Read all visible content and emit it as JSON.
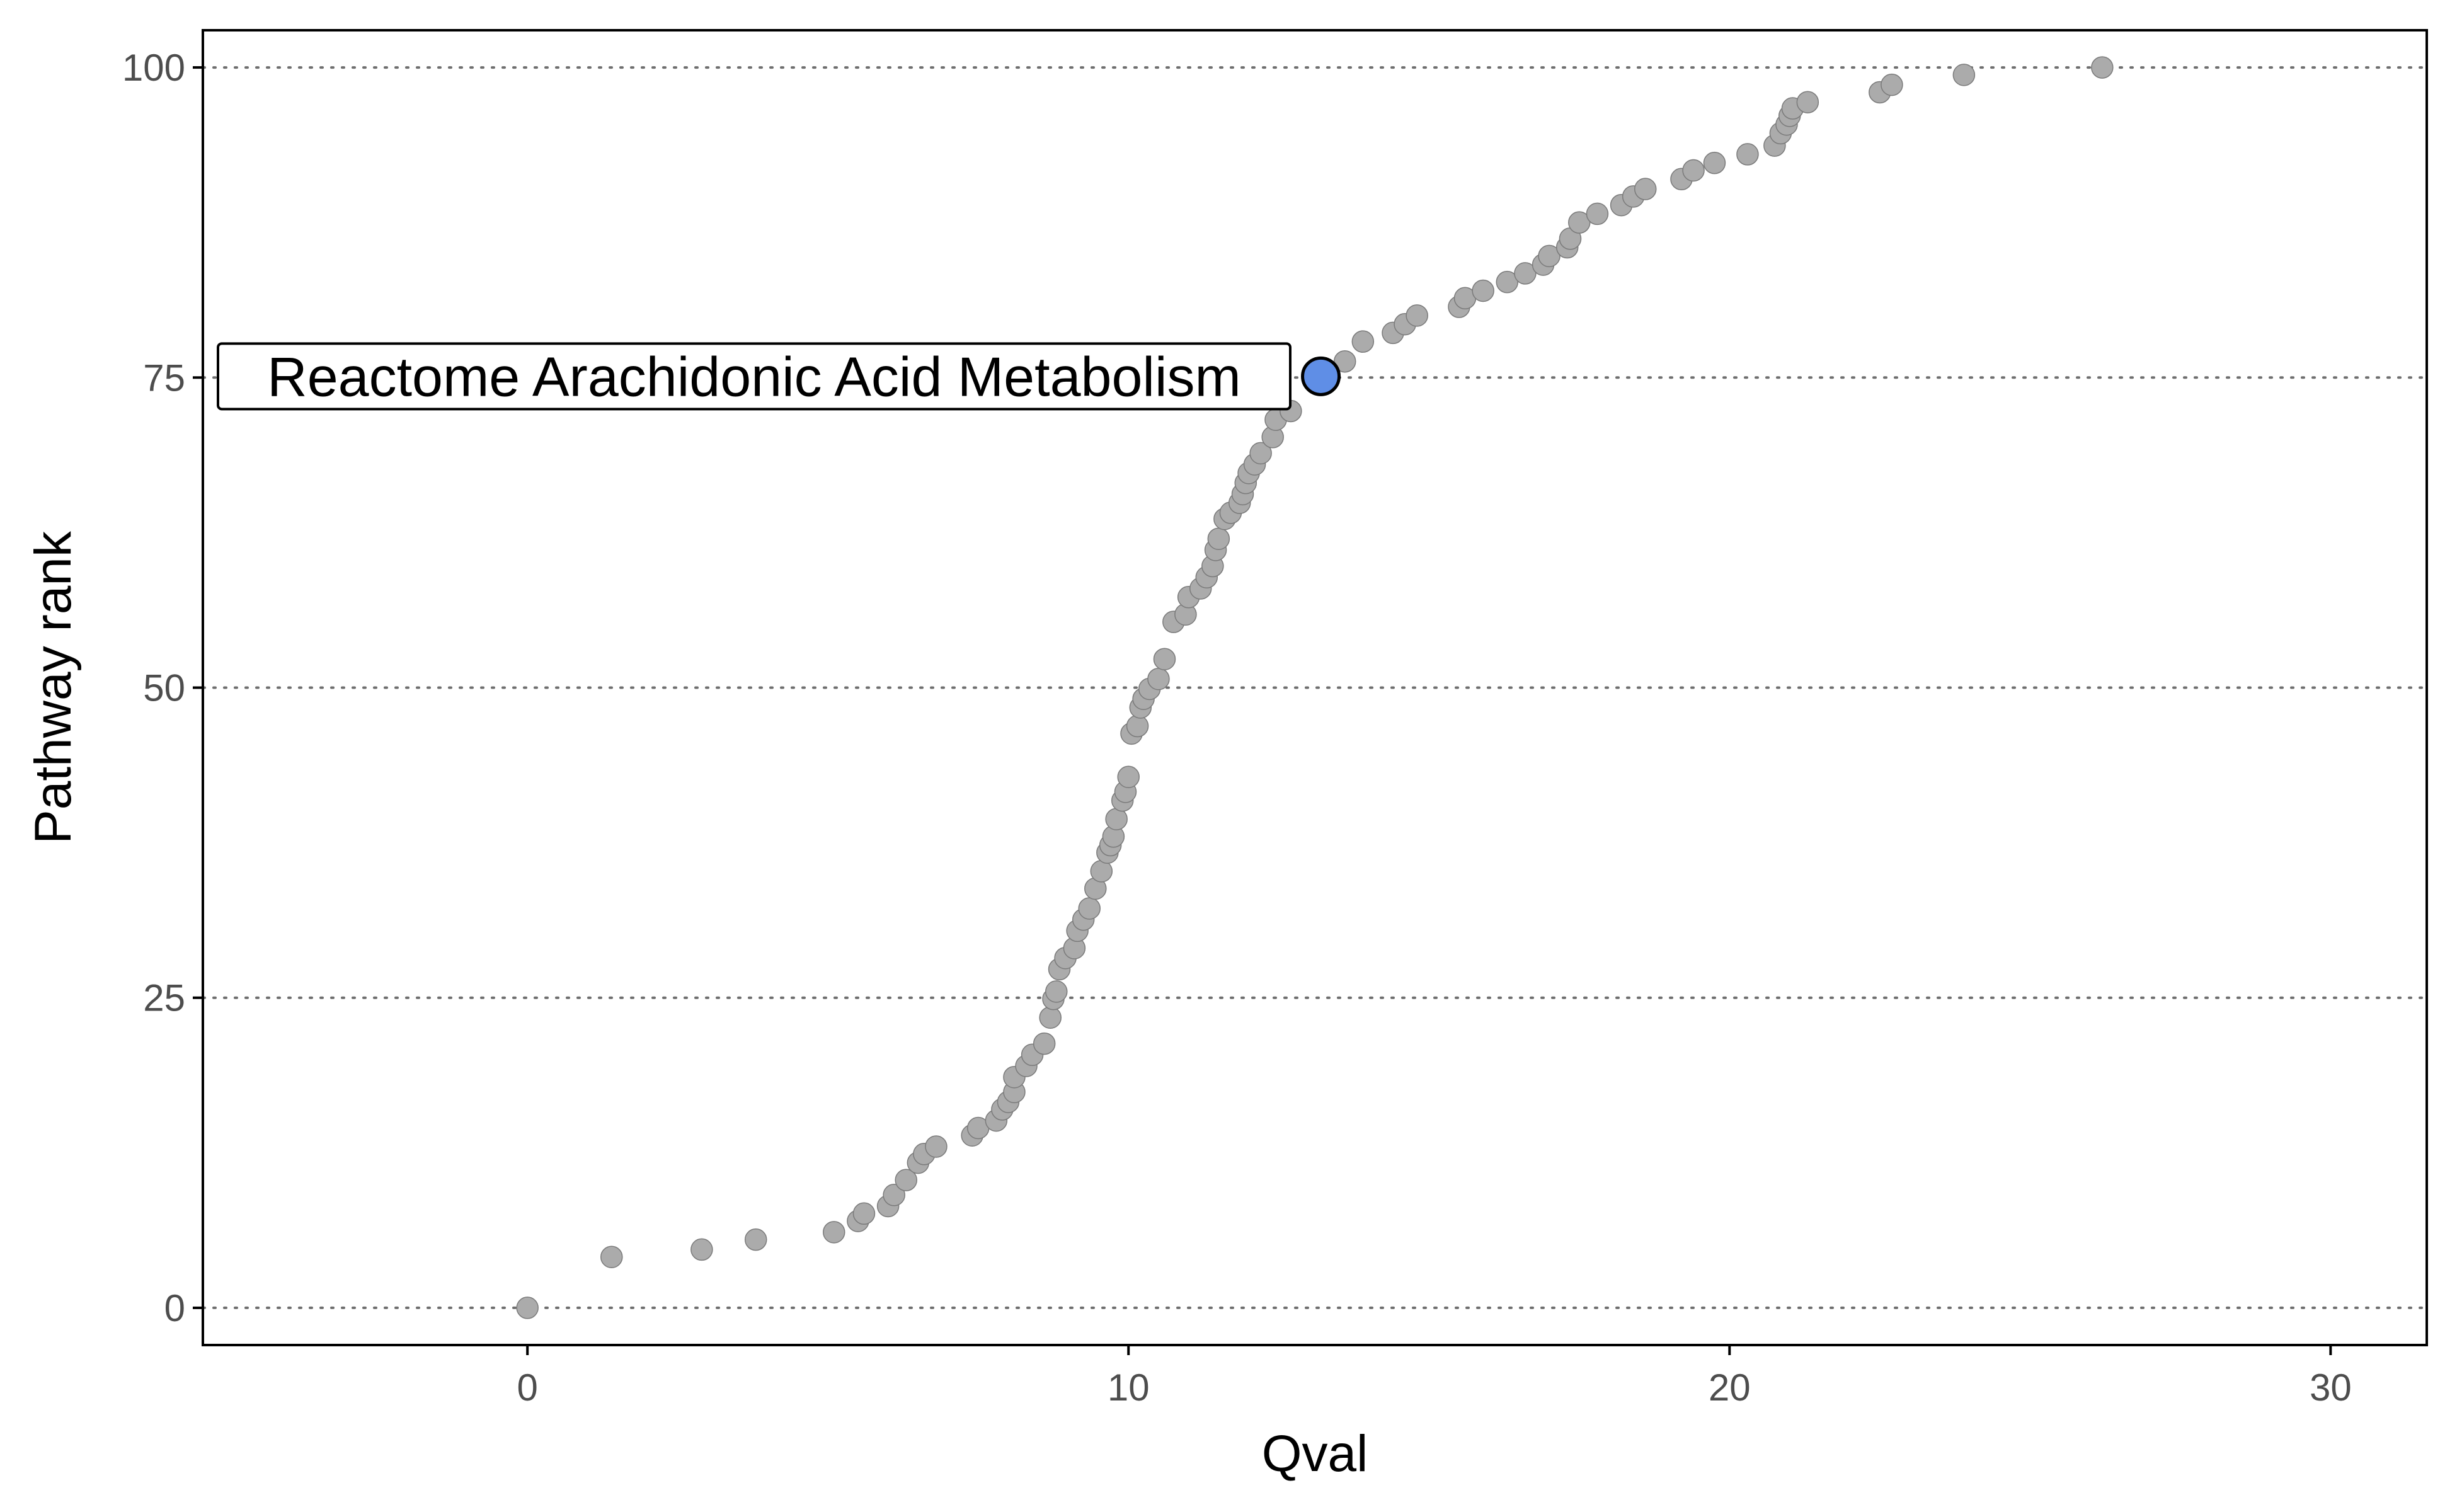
{
  "chart_data": {
    "type": "scatter",
    "xlabel": "Qval",
    "ylabel": "Pathway rank",
    "xlim": [
      -5.4,
      31.6
    ],
    "ylim": [
      -3,
      103
    ],
    "x_ticks": [
      0,
      10,
      20,
      30
    ],
    "y_ticks": [
      0,
      25,
      50,
      75,
      100
    ],
    "grid": "horizontal dotted at y ticks",
    "colors": {
      "point": "#ababab",
      "point_edge": "#7a7a7a",
      "highlight": "#5f8ee6",
      "highlight_edge": "#000000",
      "grid": "#6e6e6e",
      "axis": "#000000"
    },
    "highlight": {
      "label": "Reactome Arachidonic Acid Metabolism",
      "x": 13.2,
      "y": 75.1
    },
    "points": [
      [
        0.0,
        0.0
      ],
      [
        1.4,
        4.1
      ],
      [
        2.9,
        4.7
      ],
      [
        3.8,
        5.5
      ],
      [
        5.1,
        6.1
      ],
      [
        5.5,
        7.0
      ],
      [
        5.6,
        7.6
      ],
      [
        6.0,
        8.2
      ],
      [
        6.1,
        9.1
      ],
      [
        6.3,
        10.3
      ],
      [
        6.5,
        11.7
      ],
      [
        6.6,
        12.4
      ],
      [
        6.8,
        13.0
      ],
      [
        7.4,
        13.9
      ],
      [
        7.5,
        14.5
      ],
      [
        7.8,
        15.1
      ],
      [
        7.9,
        16.0
      ],
      [
        8.0,
        16.6
      ],
      [
        8.1,
        17.4
      ],
      [
        8.1,
        18.6
      ],
      [
        8.3,
        19.5
      ],
      [
        8.4,
        20.4
      ],
      [
        8.6,
        21.3
      ],
      [
        8.7,
        23.4
      ],
      [
        8.75,
        24.9
      ],
      [
        8.8,
        25.5
      ],
      [
        8.85,
        27.3
      ],
      [
        8.95,
        28.2
      ],
      [
        9.1,
        29.0
      ],
      [
        9.15,
        30.4
      ],
      [
        9.25,
        31.3
      ],
      [
        9.35,
        32.2
      ],
      [
        9.45,
        33.8
      ],
      [
        9.55,
        35.2
      ],
      [
        9.65,
        36.7
      ],
      [
        9.7,
        37.3
      ],
      [
        9.75,
        38.0
      ],
      [
        9.8,
        39.4
      ],
      [
        9.9,
        40.9
      ],
      [
        9.95,
        41.6
      ],
      [
        10.0,
        42.8
      ],
      [
        10.05,
        46.3
      ],
      [
        10.15,
        46.9
      ],
      [
        10.2,
        48.4
      ],
      [
        10.25,
        49.1
      ],
      [
        10.35,
        49.9
      ],
      [
        10.5,
        50.7
      ],
      [
        10.6,
        52.3
      ],
      [
        10.75,
        55.3
      ],
      [
        10.95,
        55.9
      ],
      [
        11.0,
        57.3
      ],
      [
        11.2,
        58.0
      ],
      [
        11.3,
        58.9
      ],
      [
        11.4,
        59.8
      ],
      [
        11.45,
        61.1
      ],
      [
        11.5,
        62.0
      ],
      [
        11.6,
        63.6
      ],
      [
        11.7,
        64.1
      ],
      [
        11.85,
        64.9
      ],
      [
        11.9,
        65.6
      ],
      [
        11.95,
        66.5
      ],
      [
        12.0,
        67.3
      ],
      [
        12.1,
        68.0
      ],
      [
        12.2,
        68.9
      ],
      [
        12.4,
        70.2
      ],
      [
        12.45,
        71.6
      ],
      [
        12.7,
        72.3
      ],
      [
        13.6,
        76.3
      ],
      [
        13.9,
        77.9
      ],
      [
        14.4,
        78.6
      ],
      [
        14.6,
        79.3
      ],
      [
        14.8,
        80.0
      ],
      [
        15.5,
        80.7
      ],
      [
        15.6,
        81.4
      ],
      [
        15.9,
        82.0
      ],
      [
        16.3,
        82.7
      ],
      [
        16.6,
        83.4
      ],
      [
        16.9,
        84.1
      ],
      [
        17.0,
        84.8
      ],
      [
        17.3,
        85.5
      ],
      [
        17.35,
        86.2
      ],
      [
        17.5,
        87.5
      ],
      [
        17.8,
        88.2
      ],
      [
        18.2,
        88.9
      ],
      [
        18.4,
        89.6
      ],
      [
        18.6,
        90.2
      ],
      [
        19.2,
        91.0
      ],
      [
        19.4,
        91.7
      ],
      [
        19.75,
        92.3
      ],
      [
        20.3,
        93.0
      ],
      [
        20.75,
        93.7
      ],
      [
        20.85,
        94.7
      ],
      [
        20.95,
        95.4
      ],
      [
        21.0,
        96.1
      ],
      [
        21.05,
        96.7
      ],
      [
        21.3,
        97.2
      ],
      [
        22.5,
        98.0
      ],
      [
        22.7,
        98.6
      ],
      [
        23.9,
        99.4
      ],
      [
        26.2,
        100.0
      ]
    ]
  }
}
